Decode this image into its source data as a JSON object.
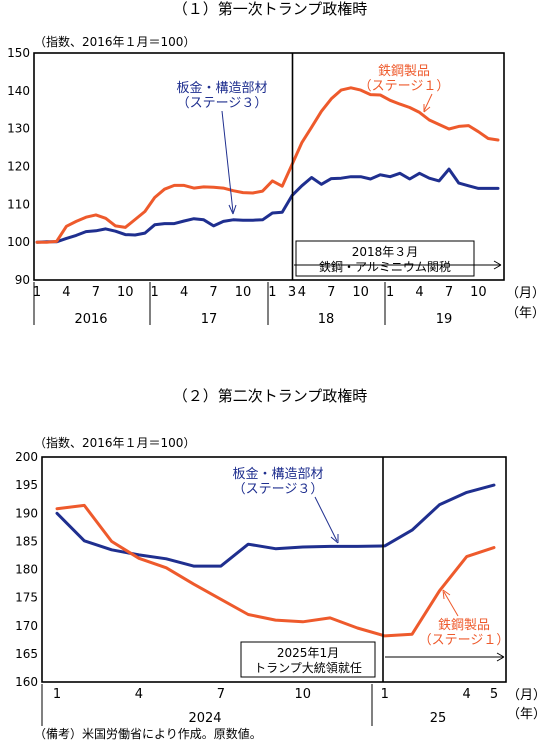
{
  "chart_data": [
    {
      "type": "line",
      "title": "（１）第一次トランプ政権時",
      "unit_note": "（指数、2016年１月＝100）",
      "ylim": [
        90,
        150
      ],
      "yticks": [
        90,
        100,
        110,
        120,
        130,
        140,
        150
      ],
      "x_month_ticks": [
        "1",
        "4",
        "7",
        "10",
        "1",
        "4",
        "7",
        "10",
        "1",
        "3",
        "4",
        "7",
        "10",
        "1",
        "4",
        "7",
        "10"
      ],
      "x_month_tick_index": [
        0,
        3,
        6,
        9,
        12,
        15,
        18,
        21,
        24,
        26,
        27,
        30,
        33,
        36,
        39,
        42,
        45
      ],
      "year_labels": [
        "2016",
        "17",
        "18",
        "19"
      ],
      "x_unit_month": "（月）",
      "x_unit_year": "（年）",
      "series": [
        {
          "name": "板金・構造部材（ステージ３）",
          "label_lines": [
            "板金・構造部材",
            "（ステージ３）"
          ],
          "color": "#1f2f8f",
          "values": [
            100.0,
            100.1,
            100.1,
            101.0,
            101.8,
            102.8,
            103.0,
            103.5,
            102.9,
            102.0,
            101.9,
            102.4,
            104.6,
            104.9,
            104.9,
            105.6,
            106.2,
            105.9,
            104.3,
            105.5,
            105.9,
            105.8,
            105.8,
            105.9,
            107.7,
            107.9,
            112.3,
            114.9,
            117.1,
            115.3,
            116.8,
            116.9,
            117.3,
            117.3,
            116.7,
            117.8,
            117.3,
            118.2,
            116.7,
            118.2,
            116.9,
            116.2,
            119.3,
            115.6,
            114.9,
            114.2,
            114.2,
            114.2
          ]
        },
        {
          "name": "鉄鋼製品（ステージ１）",
          "label_lines": [
            "鉄鋼製品",
            "（ステージ１）"
          ],
          "color": "#ee5a2c",
          "values": [
            100.0,
            100.0,
            100.2,
            104.2,
            105.5,
            106.6,
            107.2,
            106.3,
            104.3,
            103.9,
            106.0,
            108.1,
            111.8,
            114.0,
            115.0,
            115.0,
            114.3,
            114.6,
            114.5,
            114.3,
            113.6,
            113.1,
            113.0,
            113.5,
            116.2,
            114.8,
            120.5,
            126.3,
            130.4,
            134.6,
            137.9,
            140.2,
            140.8,
            140.2,
            139.0,
            138.9,
            137.5,
            136.5,
            135.6,
            134.3,
            132.3,
            131.1,
            129.9,
            130.6,
            130.8,
            129.2,
            127.4,
            127.0
          ]
        }
      ],
      "annotation": {
        "lines": [
          "2018年３月",
          "鉄鋼・アルミニウム関税"
        ]
      }
    },
    {
      "type": "line",
      "title": "（２）第二次トランプ政権時",
      "unit_note": "（指数、2016年１月＝100）",
      "ylim": [
        160,
        200
      ],
      "yticks": [
        160,
        165,
        170,
        175,
        180,
        185,
        190,
        195,
        200
      ],
      "x_month_ticks": [
        "1",
        "4",
        "7",
        "10",
        "1",
        "4",
        "5"
      ],
      "x_month_tick_index": [
        0,
        3,
        6,
        9,
        12,
        15,
        16
      ],
      "year_labels": [
        "2024",
        "25"
      ],
      "x_unit_month": "（月）",
      "x_unit_year": "（年）",
      "series": [
        {
          "name": "板金・構造部材（ステージ３）",
          "label_lines": [
            "板金・構造部材",
            "（ステージ３）"
          ],
          "color": "#1f2f8f",
          "values": [
            190.0,
            185.1,
            183.5,
            182.6,
            181.9,
            180.6,
            180.6,
            184.5,
            183.7,
            184.0,
            184.1,
            184.1,
            184.2,
            187.0,
            191.5,
            193.7,
            195.0
          ]
        },
        {
          "name": "鉄鋼製品（ステージ１）",
          "label_lines": [
            "鉄鋼製品",
            "（ステージ１）"
          ],
          "color": "#ee5a2c",
          "values": [
            190.8,
            191.4,
            185.0,
            182.0,
            180.3,
            177.4,
            174.7,
            172.0,
            171.0,
            170.7,
            171.4,
            169.6,
            168.2,
            168.5,
            176.2,
            182.3,
            183.9
          ]
        }
      ],
      "annotation": {
        "lines": [
          "2025年1月",
          "トランプ大統領就任"
        ]
      }
    }
  ],
  "footnote": "（備考）米国労働省により作成。原数値。"
}
